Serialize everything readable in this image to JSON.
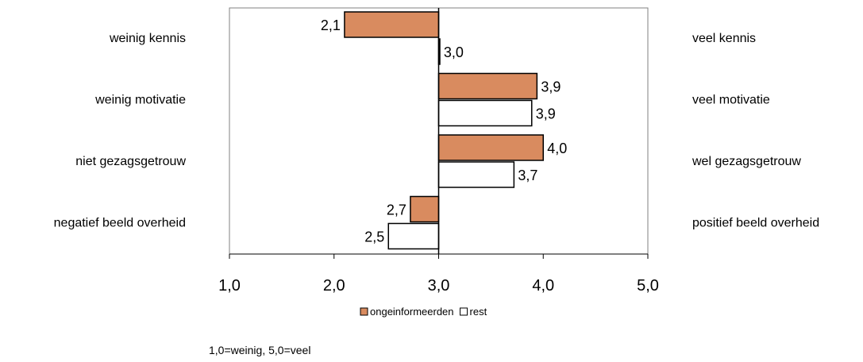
{
  "chart_data": {
    "type": "bar",
    "orientation": "horizontal",
    "baseline": 3.0,
    "xlim": [
      1.0,
      5.0
    ],
    "xticks": [
      "1,0",
      "2,0",
      "3,0",
      "4,0",
      "5,0"
    ],
    "categories_left": [
      "weinig kennis",
      "weinig motivatie",
      "niet gezagsgetrouw",
      "negatief beeld overheid"
    ],
    "categories_right": [
      "veel kennis",
      "veel motivatie",
      "wel gezagsgetrouw",
      "positief beeld overheid"
    ],
    "series": [
      {
        "name": "ongeinformeerden",
        "color": "#d98b5f",
        "values": [
          2.1,
          3.94,
          4.0,
          2.73
        ],
        "labels": [
          "2,1",
          "3,9",
          "4,0",
          "2,7"
        ]
      },
      {
        "name": "rest",
        "color": "#ffffff",
        "values": [
          3.01,
          3.89,
          3.72,
          2.52
        ],
        "labels": [
          "3,0",
          "3,9",
          "3,7",
          "2,5"
        ]
      }
    ],
    "legend_position": "bottom",
    "grid": false,
    "note": "1,0=weinig, 5,0=veel"
  }
}
